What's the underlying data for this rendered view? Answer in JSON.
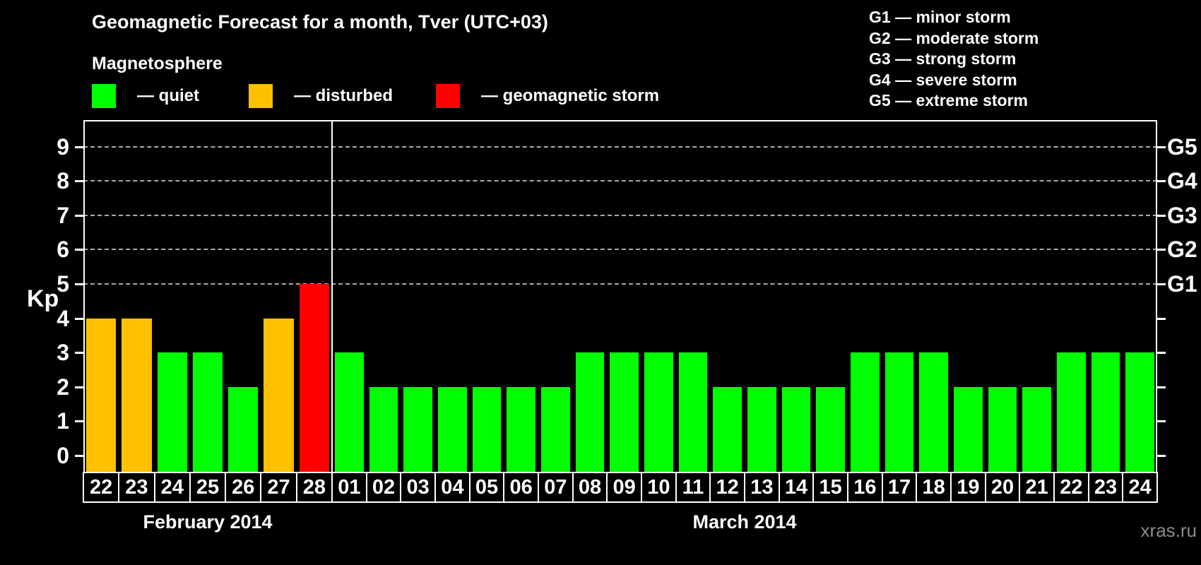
{
  "header": {
    "title": "Geomagnetic Forecast for a month, Tver (UTC+03)",
    "subtitle": "Magnetosphere"
  },
  "legend": {
    "items": [
      {
        "status": "quiet",
        "label": "— quiet",
        "color": "#00ff00",
        "offset_x": 0
      },
      {
        "status": "disturbed",
        "label": "— disturbed",
        "color": "#ffc000",
        "offset_x": 222
      },
      {
        "status": "storm",
        "label": "— geomagnetic storm",
        "color": "#ff0000",
        "offset_x": 487
      }
    ]
  },
  "g_legend": {
    "items": [
      "G1 — minor storm",
      "G2 — moderate storm",
      "G3 — strong storm",
      "G4 — severe storm",
      "G5 — extreme storm"
    ]
  },
  "footer": {
    "watermark": "xras.ru"
  },
  "chart_data": {
    "type": "bar",
    "title": "Geomagnetic Forecast for a month, Tver (UTC+03)",
    "xlabel": "",
    "ylabel": "Kp",
    "ylim": [
      0,
      9
    ],
    "yticks": [
      0,
      1,
      2,
      3,
      4,
      5,
      6,
      7,
      8,
      9
    ],
    "gridlines_at": [
      5,
      6,
      7,
      8,
      9
    ],
    "grid": "horizontal dashed at Kp 5-9 only",
    "legend_position": "top",
    "right_axis_labels": [
      {
        "kp": 5,
        "label": "G1"
      },
      {
        "kp": 6,
        "label": "G2"
      },
      {
        "kp": 7,
        "label": "G3"
      },
      {
        "kp": 8,
        "label": "G4"
      },
      {
        "kp": 9,
        "label": "G5"
      }
    ],
    "series_colors": {
      "quiet": "#00ff00",
      "disturbed": "#ffc000",
      "storm": "#ff0000"
    },
    "months": [
      {
        "label": "February 2014",
        "days": 7
      },
      {
        "label": "March 2014",
        "days": 24
      }
    ],
    "points": [
      {
        "month": 0,
        "day": "22",
        "kp": 4,
        "status": "disturbed"
      },
      {
        "month": 0,
        "day": "23",
        "kp": 4,
        "status": "disturbed"
      },
      {
        "month": 0,
        "day": "24",
        "kp": 3,
        "status": "quiet"
      },
      {
        "month": 0,
        "day": "25",
        "kp": 3,
        "status": "quiet"
      },
      {
        "month": 0,
        "day": "26",
        "kp": 2,
        "status": "quiet"
      },
      {
        "month": 0,
        "day": "27",
        "kp": 4,
        "status": "disturbed"
      },
      {
        "month": 0,
        "day": "28",
        "kp": 5,
        "status": "storm"
      },
      {
        "month": 1,
        "day": "01",
        "kp": 3,
        "status": "quiet"
      },
      {
        "month": 1,
        "day": "02",
        "kp": 2,
        "status": "quiet"
      },
      {
        "month": 1,
        "day": "03",
        "kp": 2,
        "status": "quiet"
      },
      {
        "month": 1,
        "day": "04",
        "kp": 2,
        "status": "quiet"
      },
      {
        "month": 1,
        "day": "05",
        "kp": 2,
        "status": "quiet"
      },
      {
        "month": 1,
        "day": "06",
        "kp": 2,
        "status": "quiet"
      },
      {
        "month": 1,
        "day": "07",
        "kp": 2,
        "status": "quiet"
      },
      {
        "month": 1,
        "day": "08",
        "kp": 3,
        "status": "quiet"
      },
      {
        "month": 1,
        "day": "09",
        "kp": 3,
        "status": "quiet"
      },
      {
        "month": 1,
        "day": "10",
        "kp": 3,
        "status": "quiet"
      },
      {
        "month": 1,
        "day": "11",
        "kp": 3,
        "status": "quiet"
      },
      {
        "month": 1,
        "day": "12",
        "kp": 2,
        "status": "quiet"
      },
      {
        "month": 1,
        "day": "13",
        "kp": 2,
        "status": "quiet"
      },
      {
        "month": 1,
        "day": "14",
        "kp": 2,
        "status": "quiet"
      },
      {
        "month": 1,
        "day": "15",
        "kp": 2,
        "status": "quiet"
      },
      {
        "month": 1,
        "day": "16",
        "kp": 3,
        "status": "quiet"
      },
      {
        "month": 1,
        "day": "17",
        "kp": 3,
        "status": "quiet"
      },
      {
        "month": 1,
        "day": "18",
        "kp": 3,
        "status": "quiet"
      },
      {
        "month": 1,
        "day": "19",
        "kp": 2,
        "status": "quiet"
      },
      {
        "month": 1,
        "day": "20",
        "kp": 2,
        "status": "quiet"
      },
      {
        "month": 1,
        "day": "21",
        "kp": 2,
        "status": "quiet"
      },
      {
        "month": 1,
        "day": "22",
        "kp": 3,
        "status": "quiet"
      },
      {
        "month": 1,
        "day": "23",
        "kp": 3,
        "status": "quiet"
      },
      {
        "month": 1,
        "day": "24",
        "kp": 3,
        "status": "quiet"
      }
    ]
  }
}
